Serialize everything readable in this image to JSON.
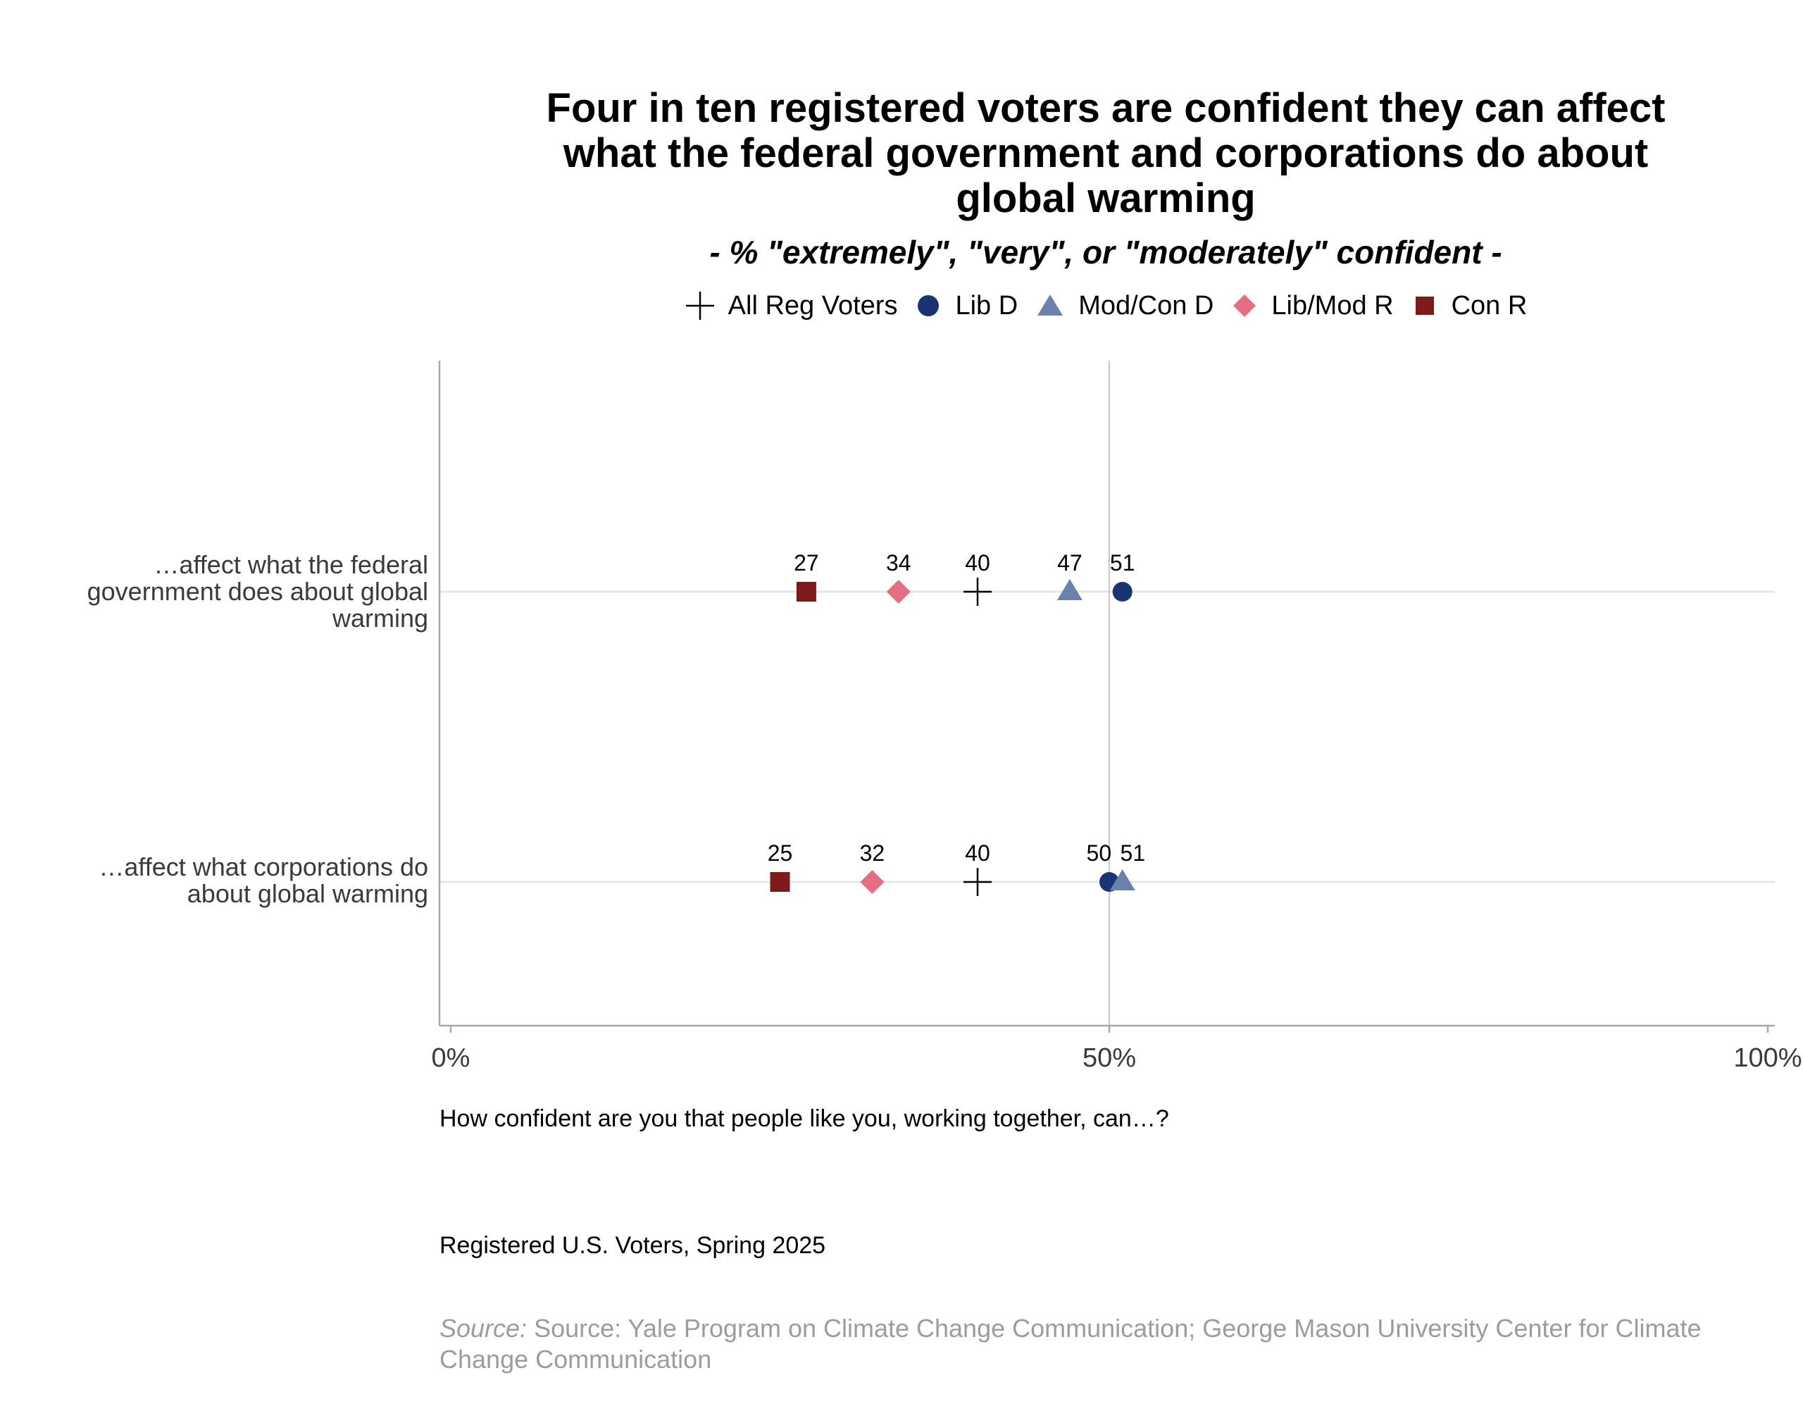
{
  "chart_data": {
    "type": "scatter",
    "title_lines": [
      "Four in ten registered voters are confident they can affect",
      "what the federal government and corporations do about",
      "global warming"
    ],
    "subtitle": "- % \"extremely\", \"very\", or \"moderately\" confident -",
    "xlim": [
      0,
      100
    ],
    "x_ticks": [
      {
        "value": 0,
        "label": "0%"
      },
      {
        "value": 50,
        "label": "50%"
      },
      {
        "value": 100,
        "label": "100%"
      }
    ],
    "grid": "major gridlines at 50% and along each category",
    "legend_position": "top",
    "categories": [
      {
        "label_lines": [
          "…affect what the federal",
          "government does about global",
          "warming"
        ]
      },
      {
        "label_lines": [
          "…affect what corporations do",
          "about global warming"
        ]
      }
    ],
    "series": [
      {
        "name": "All Reg Voters",
        "marker": "cross",
        "color": "#000000",
        "values": [
          40,
          40
        ]
      },
      {
        "name": "Lib D",
        "marker": "circle",
        "color": "#1a3473",
        "values": [
          51,
          50
        ]
      },
      {
        "name": "Mod/Con D",
        "marker": "triangle",
        "color": "#6b82ad",
        "values": [
          47,
          51
        ]
      },
      {
        "name": "Lib/Mod R",
        "marker": "diamond",
        "color": "#e46e82",
        "values": [
          34,
          32
        ]
      },
      {
        "name": "Con R",
        "marker": "square",
        "color": "#7d1a1a",
        "values": [
          27,
          25
        ]
      }
    ]
  },
  "footer": {
    "question": "How confident are you that people like you, working together, can…?",
    "population": "Registered U.S. Voters, Spring 2025",
    "source_prefix": "Source:",
    "source_text": "Source: Yale Program on Climate Change Communication; George Mason University Center for Climate Change Communication"
  }
}
